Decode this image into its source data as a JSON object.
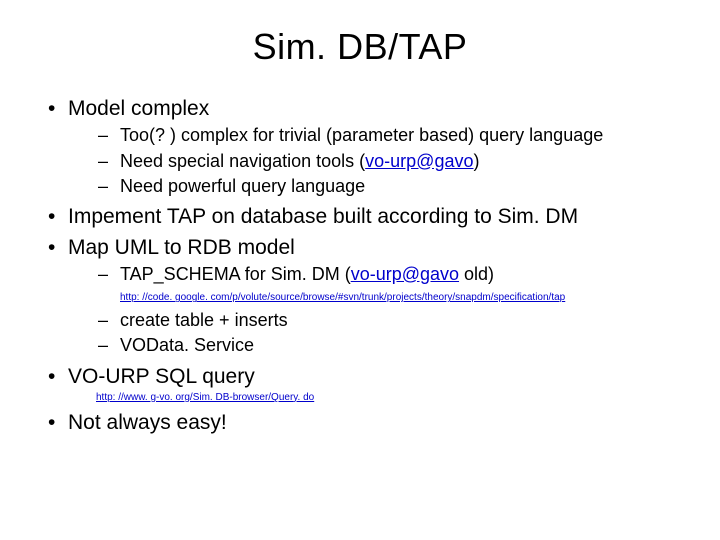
{
  "title": "Sim. DB/TAP",
  "b1": "Model complex",
  "b1s1": "Too(? ) complex for trivial (parameter based) query language",
  "b1s2a": "Need special navigation tools (",
  "b1s2link": "vo-urp@gavo",
  "b1s2b": ")",
  "b1s3": "Need powerful query language",
  "b2": "Impement TAP on database built according to Sim. DM",
  "b3": "Map UML to RDB model",
  "b3s1a": "TAP_SCHEMA for Sim. DM (",
  "b3s1link": "vo-urp@gavo",
  "b3s1b": " old)",
  "b3link": "http: //code. google. com/p/volute/source/browse/#svn/trunk/projects/theory/snapdm/specification/tap",
  "b3s2": "create table + inserts",
  "b3s3": "VOData. Service",
  "b4": "VO-URP SQL query",
  "b4link": "http: //www. g-vo. org/Sim. DB-browser/Query. do",
  "b5": "Not always easy!"
}
